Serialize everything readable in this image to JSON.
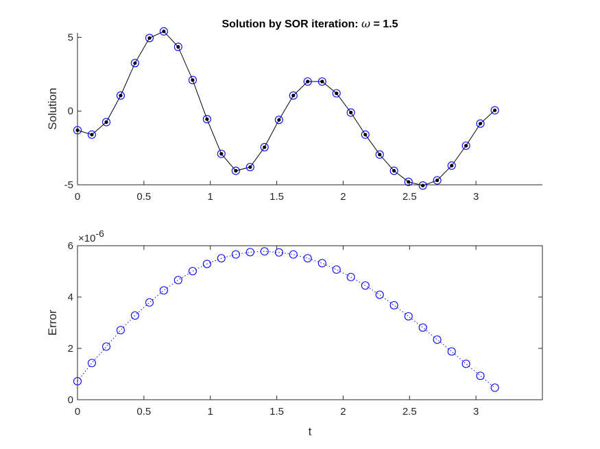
{
  "figure": {
    "title_prefix": "Solution by SOR iteration: ",
    "title_symbol": "ω",
    "title_suffix": " = 1.5"
  },
  "colors": {
    "axis": "#262626",
    "solution_line": "#000000",
    "solution_dot": "#000000",
    "marker": "#0000ff",
    "error_line": "#0000ff",
    "background": "#ffffff"
  },
  "chart_data": [
    {
      "type": "line",
      "ylabel": "Solution",
      "xlabel": "",
      "xlim": [
        0,
        3.5
      ],
      "ylim": [
        -5,
        5.3
      ],
      "xticks": [
        0,
        0.5,
        1,
        1.5,
        2,
        2.5,
        3
      ],
      "xtick_labels": [
        "0",
        "0.5",
        "1",
        "1.5",
        "2",
        "2.5",
        "3"
      ],
      "yticks": [
        -5,
        0,
        5
      ],
      "ytick_labels": [
        "-5",
        "0",
        "5"
      ],
      "x": [
        0,
        0.108,
        0.217,
        0.325,
        0.433,
        0.542,
        0.65,
        0.758,
        0.867,
        0.975,
        1.083,
        1.192,
        1.3,
        1.408,
        1.517,
        1.625,
        1.733,
        1.842,
        1.95,
        2.058,
        2.167,
        2.275,
        2.383,
        2.492,
        2.6,
        2.708,
        2.817,
        2.925,
        3.033,
        3.142
      ],
      "series": [
        {
          "style": "black line with dots",
          "values": [
            -1.3,
            -1.6,
            -0.75,
            1.05,
            3.25,
            4.95,
            5.4,
            4.35,
            2.1,
            -0.55,
            -2.9,
            -4.05,
            -3.8,
            -2.45,
            -0.6,
            1.05,
            2.0,
            2.0,
            1.2,
            -0.1,
            -1.6,
            -2.95,
            -4.05,
            -4.8,
            -5.05,
            -4.7,
            -3.7,
            -2.35,
            -0.85,
            0.05
          ]
        },
        {
          "style": "blue circles",
          "values": [
            -1.3,
            -1.6,
            -0.75,
            1.05,
            3.25,
            4.95,
            5.4,
            4.35,
            2.1,
            -0.55,
            -2.9,
            -4.05,
            -3.8,
            -2.45,
            -0.6,
            1.05,
            2.0,
            2.0,
            1.2,
            -0.1,
            -1.6,
            -2.95,
            -4.05,
            -4.8,
            -5.05,
            -4.7,
            -3.7,
            -2.35,
            -0.85,
            0.05
          ]
        }
      ]
    },
    {
      "type": "scatter",
      "ylabel": "Error",
      "xlabel": "t",
      "xlim": [
        0,
        3.5
      ],
      "ylim": [
        0,
        6
      ],
      "y_exponent_base": "×10",
      "y_exponent": "-6",
      "xticks": [
        0,
        0.5,
        1,
        1.5,
        2,
        2.5,
        3
      ],
      "xtick_labels": [
        "0",
        "0.5",
        "1",
        "1.5",
        "2",
        "2.5",
        "3"
      ],
      "yticks": [
        0,
        2,
        4,
        6
      ],
      "ytick_labels": [
        "0",
        "2",
        "4",
        "6"
      ],
      "x": [
        0,
        0.108,
        0.217,
        0.325,
        0.433,
        0.542,
        0.65,
        0.758,
        0.867,
        0.975,
        1.083,
        1.192,
        1.3,
        1.408,
        1.517,
        1.625,
        1.733,
        1.842,
        1.95,
        2.058,
        2.167,
        2.275,
        2.383,
        2.492,
        2.6,
        2.708,
        2.817,
        2.925,
        3.033,
        3.142
      ],
      "series": [
        {
          "style": "blue circles with dotted line",
          "values": [
            0.72,
            1.43,
            2.07,
            2.71,
            3.28,
            3.79,
            4.26,
            4.66,
            5.01,
            5.29,
            5.51,
            5.66,
            5.75,
            5.78,
            5.74,
            5.66,
            5.51,
            5.32,
            5.07,
            4.78,
            4.45,
            4.09,
            3.68,
            3.25,
            2.81,
            2.34,
            1.88,
            1.4,
            0.93,
            0.47
          ]
        }
      ]
    }
  ]
}
